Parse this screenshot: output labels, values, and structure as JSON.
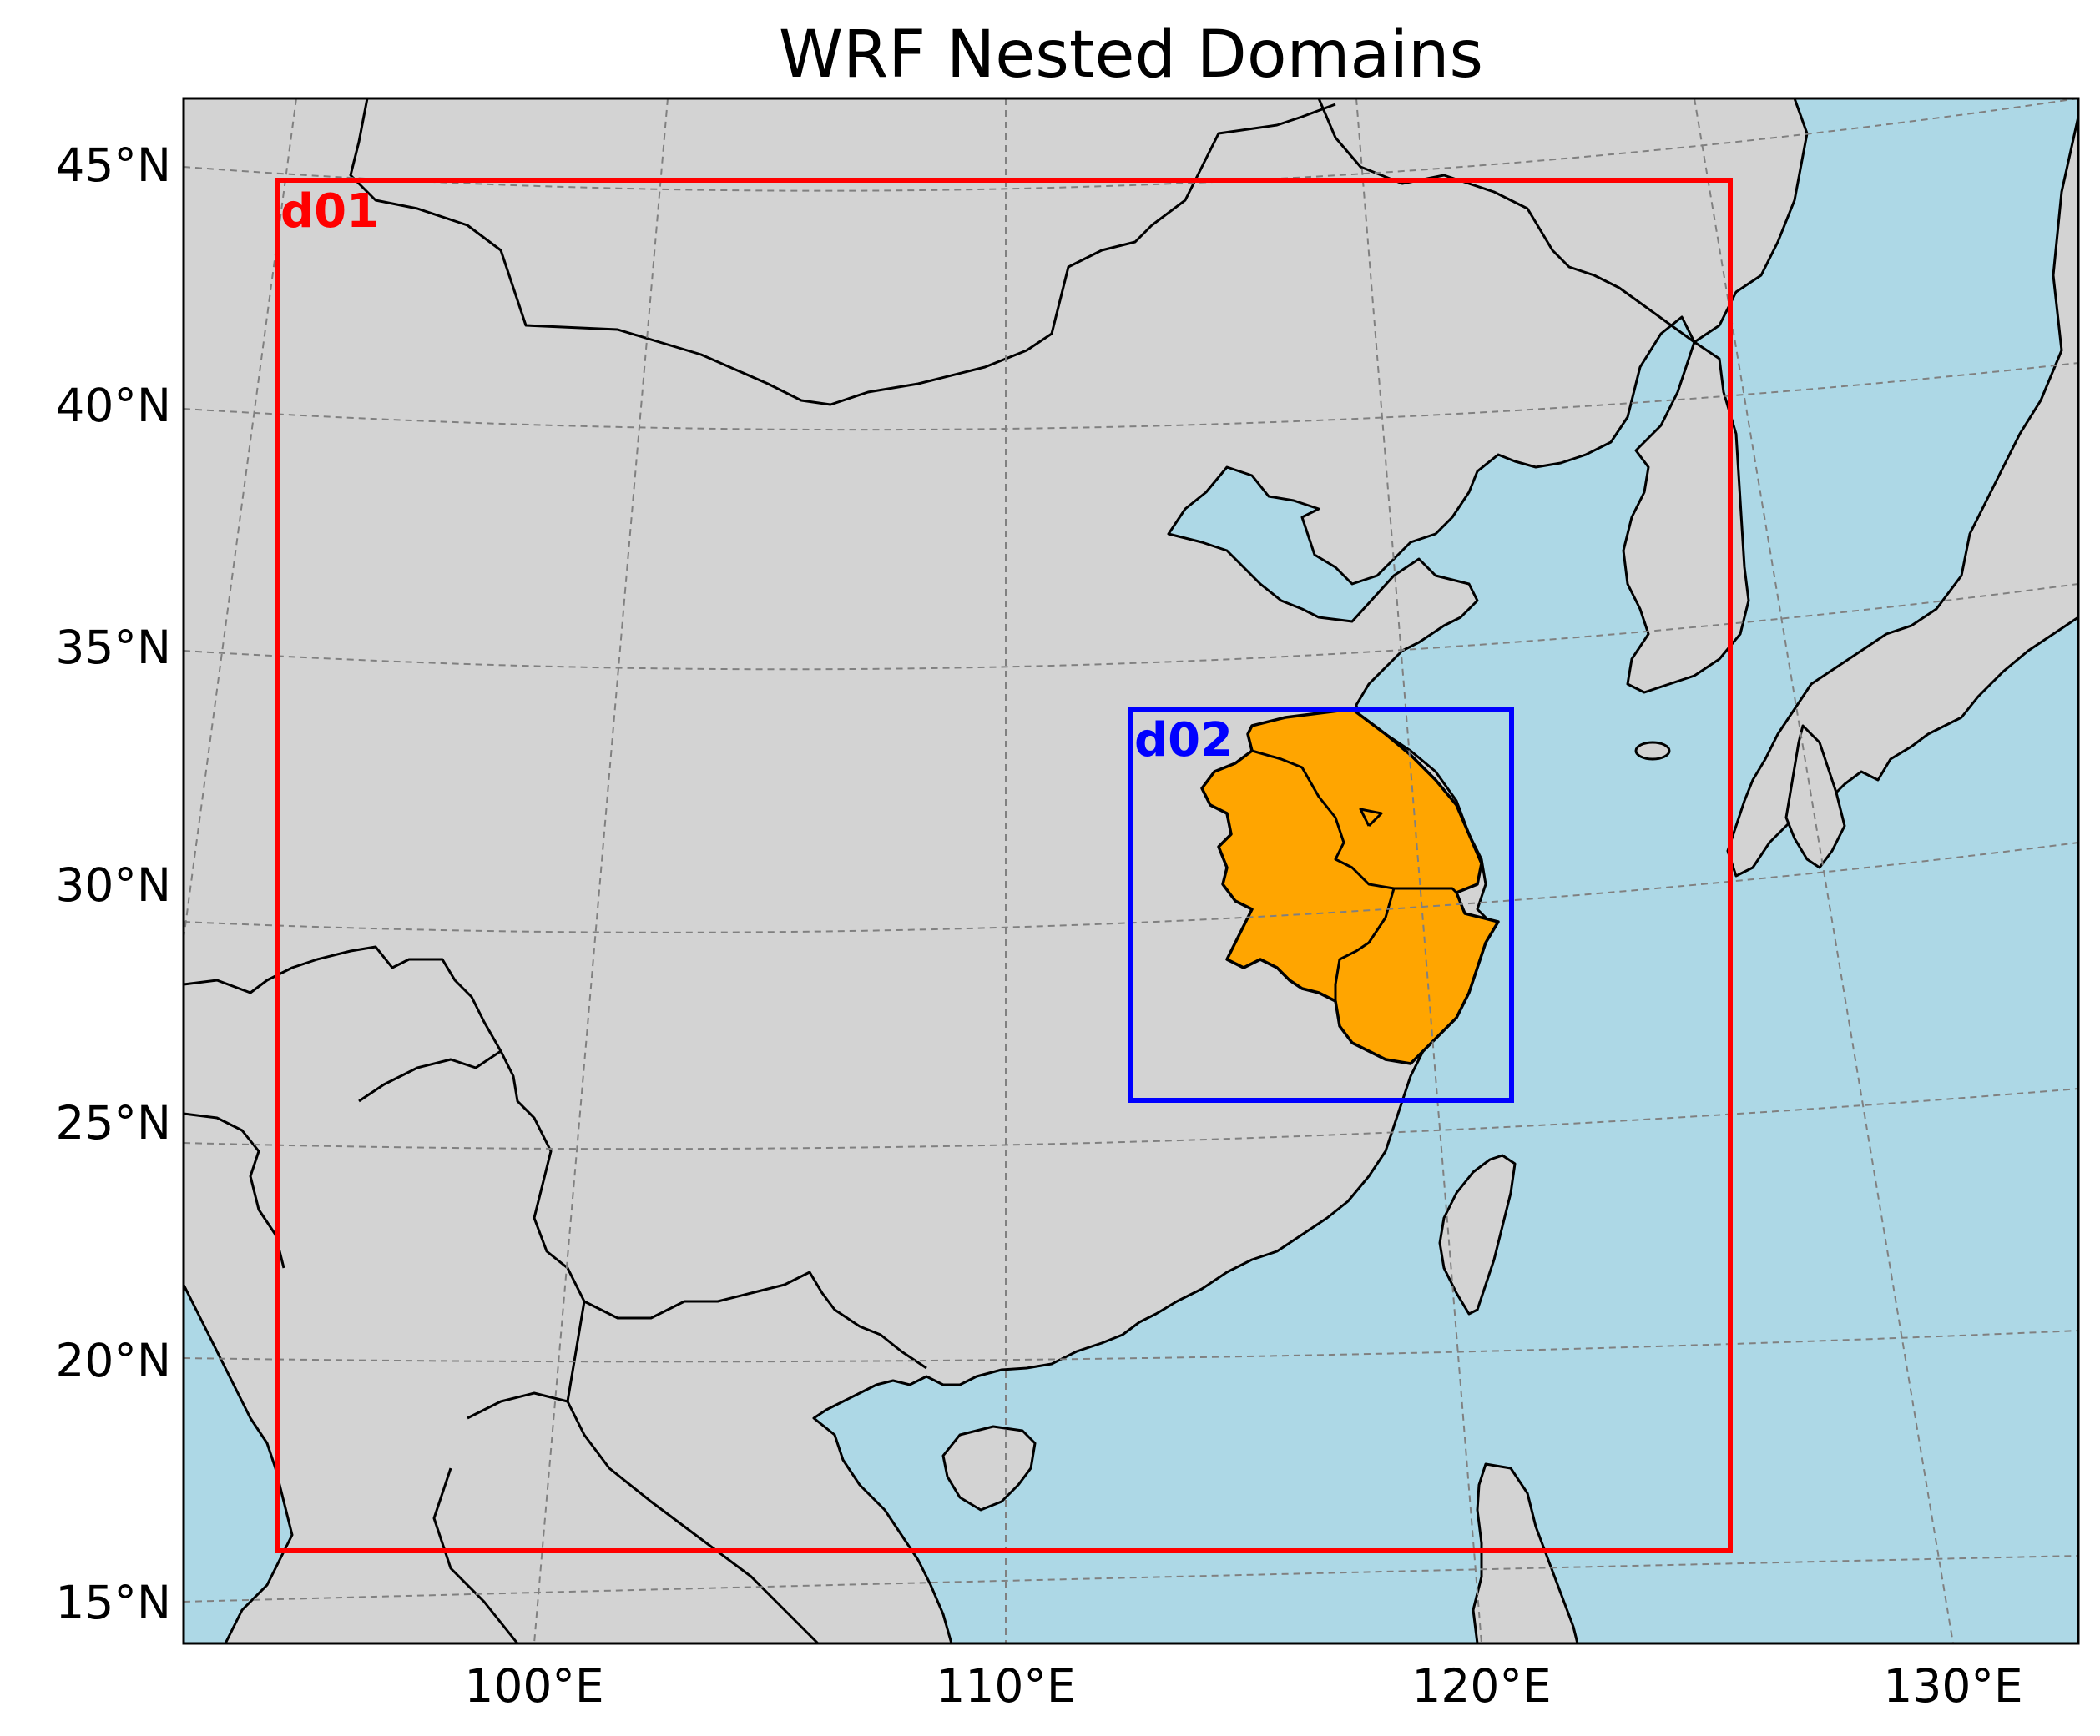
{
  "title": "WRF Nested Domains",
  "colors": {
    "ocean": "#add8e6",
    "land": "#d3d3d3",
    "highlight": "#ffa500",
    "d01": "#ff0000",
    "d02": "#0000ff"
  },
  "lat_ticks": [
    "15°N",
    "20°N",
    "25°N",
    "30°N",
    "35°N",
    "40°N",
    "45°N"
  ],
  "lon_ticks": [
    "100°E",
    "110°E",
    "120°E",
    "130°E"
  ],
  "domains": [
    {
      "label": "d01",
      "color": "#ff0000"
    },
    {
      "label": "d02",
      "color": "#0000ff"
    }
  ],
  "map_data": {
    "projection": "Lambert conformal",
    "extent_lat": [
      14,
      46.3
    ],
    "extent_lon": [
      92,
      132.5
    ],
    "gridlines": true,
    "highlighted_region": "Anhui, Jiangsu, Zhejiang provinces"
  }
}
